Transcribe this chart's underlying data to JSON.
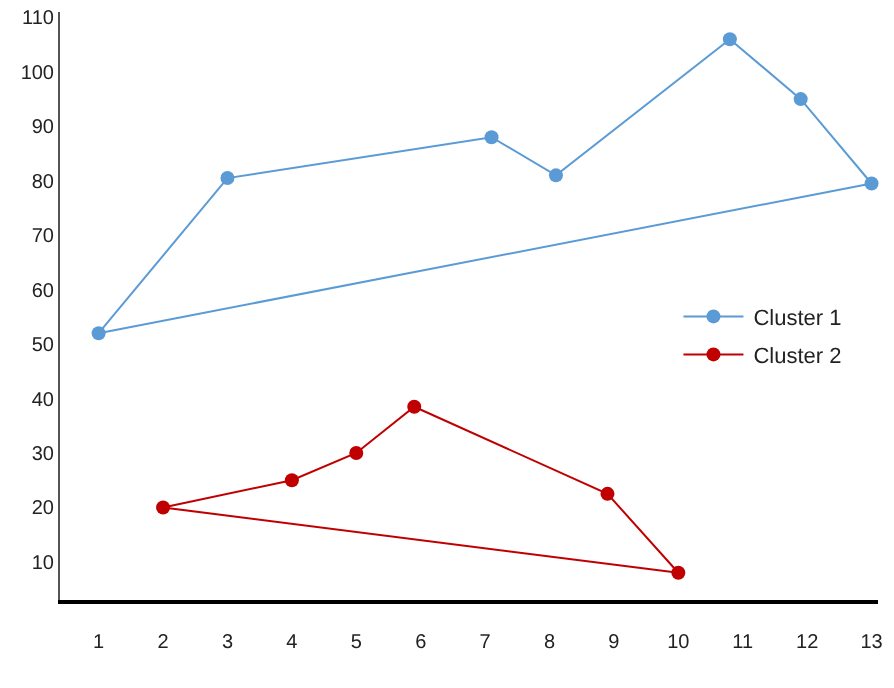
{
  "chart_data": {
    "type": "line",
    "marker": "circle",
    "line_style": "solid",
    "grid": false,
    "legend": "right",
    "xlim": [
      0.4,
      13.1
    ],
    "xticks": [
      1,
      2,
      3,
      4,
      5,
      6,
      7,
      8,
      9,
      10,
      11,
      12,
      13
    ],
    "ylim": [
      3,
      111
    ],
    "yticks": [
      10,
      20,
      30,
      40,
      50,
      60,
      70,
      80,
      90,
      100,
      110
    ],
    "series": [
      {
        "name": "Cluster 1",
        "color": "#5b9bd5",
        "x": [
          1,
          3,
          7.1,
          8.1,
          10.8,
          11.9,
          13
        ],
        "values": [
          52,
          80.5,
          88,
          81,
          106,
          95,
          79.5
        ]
      },
      {
        "name": "Cluster 2",
        "color": "#c00000",
        "x": [
          2,
          4,
          5,
          5.9,
          8.9,
          10
        ],
        "values": [
          20,
          25,
          30,
          38.5,
          22.5,
          8
        ]
      },
      {
        "color": "#5b9bd5",
        "marker": "none",
        "x": [
          1,
          13
        ],
        "values": [
          52,
          79.5
        ]
      },
      {
        "color": "#c00000",
        "marker": "none",
        "x": [
          2,
          10
        ],
        "values": [
          20,
          8
        ]
      }
    ]
  }
}
